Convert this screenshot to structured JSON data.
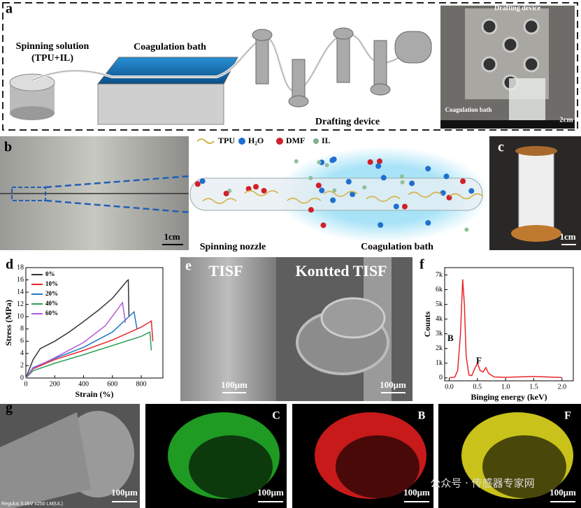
{
  "panels": {
    "a": {
      "label": "a",
      "spinning_solution": "Spinning solution",
      "spinning_solution_2": "(TPU+IL)",
      "coagulation_bath": "Coagulation bath",
      "drafting_device": "Drafting device",
      "photo_title": "Drafting device",
      "photo_bath": "Coagulation bath",
      "scale": "2cm"
    },
    "b": {
      "label": "b",
      "scale": "1cm",
      "legend": [
        "TPU",
        "H₂O",
        "DMF",
        "IL"
      ],
      "nozzle": "Spinning nozzle",
      "bath": "Coagulation bath"
    },
    "c": {
      "label": "c",
      "scale": "1cm"
    },
    "e": {
      "label": "e",
      "left": "TISF",
      "right": "Kontted TISF",
      "scale_left": "100μm",
      "scale_right": "100μm"
    },
    "g": {
      "label": "g",
      "sem_info": "Regulus 5.0kV x250 LM(UL)",
      "maps": [
        "C",
        "B",
        "F"
      ],
      "scales": [
        "100μm",
        "100μm",
        "100μm",
        "100μm"
      ]
    },
    "watermark": "公众号 · 传感器专家网"
  },
  "chart_data": [
    {
      "type": "line",
      "label": "d",
      "x_label": "Strain (%)",
      "y_label": "Stress (MPa)",
      "xlim": [
        0,
        950
      ],
      "ylim": [
        0,
        18
      ],
      "xticks": [
        0,
        200,
        400,
        600,
        800
      ],
      "yticks": [
        0,
        2,
        4,
        6,
        8,
        10,
        12,
        14,
        16,
        18
      ],
      "legend": "upper left",
      "series": [
        {
          "name": "0%",
          "color": "#333333",
          "x": [
            0,
            50,
            100,
            200,
            300,
            400,
            500,
            600,
            700,
            710,
            715
          ],
          "values": [
            0,
            3,
            4.8,
            6,
            7.5,
            9.2,
            11,
            13,
            15.8,
            16,
            10
          ]
        },
        {
          "name": "10%",
          "color": "#e8272a",
          "x": [
            0,
            50,
            200,
            400,
            600,
            800,
            870,
            880
          ],
          "values": [
            0,
            1.5,
            3,
            4.5,
            6.2,
            8.3,
            9.3,
            6
          ]
        },
        {
          "name": "20%",
          "color": "#1f77c8",
          "x": [
            0,
            50,
            200,
            400,
            600,
            750,
            770
          ],
          "values": [
            0,
            1.7,
            3.2,
            5,
            7.5,
            10.8,
            8
          ]
        },
        {
          "name": "40%",
          "color": "#2ca05a",
          "x": [
            0,
            50,
            200,
            400,
            600,
            800,
            860,
            870
          ],
          "values": [
            0,
            1.2,
            2.4,
            3.8,
            5.3,
            6.8,
            7.5,
            4.5
          ]
        },
        {
          "name": "60%",
          "color": "#b25ad8",
          "x": [
            0,
            50,
            200,
            400,
            550,
            670,
            690
          ],
          "values": [
            0,
            1.6,
            3.3,
            5.8,
            8.5,
            12.3,
            9
          ]
        }
      ]
    },
    {
      "type": "line",
      "label": "f",
      "x_label": "Binging energy (keV)",
      "y_label": "Counts",
      "xlim": [
        -0.08,
        2.2
      ],
      "ylim": [
        -200,
        7500
      ],
      "xticks": [
        {
          "value": 0,
          "label": "0.0"
        },
        0.5,
        {
          "value": 1,
          "label": "1.0"
        },
        1.5,
        {
          "value": 2,
          "label": "2.0"
        }
      ],
      "yticks": [
        0,
        {
          "value": 1000,
          "label": "1k"
        },
        {
          "value": 2000,
          "label": "2k"
        },
        {
          "value": 3000,
          "label": "3k"
        },
        {
          "value": 4000,
          "label": "4k"
        },
        {
          "value": 5000,
          "label": "5k"
        },
        {
          "value": 6000,
          "label": "6k"
        },
        {
          "value": 7000,
          "label": "7k"
        }
      ],
      "annotations": [
        "B",
        "F"
      ],
      "series": [
        {
          "name": "Counts",
          "color": "#e8272a",
          "x": [
            0,
            0.1,
            0.15,
            0.2,
            0.24,
            0.27,
            0.3,
            0.35,
            0.4,
            0.45,
            0.5,
            0.55,
            0.6,
            0.65,
            0.7,
            0.8,
            1.0,
            1.5,
            2.0
          ],
          "values": [
            0,
            50,
            500,
            3000,
            6700,
            5000,
            1500,
            200,
            150,
            600,
            1000,
            500,
            400,
            700,
            300,
            60,
            40,
            100,
            30
          ]
        }
      ]
    }
  ]
}
